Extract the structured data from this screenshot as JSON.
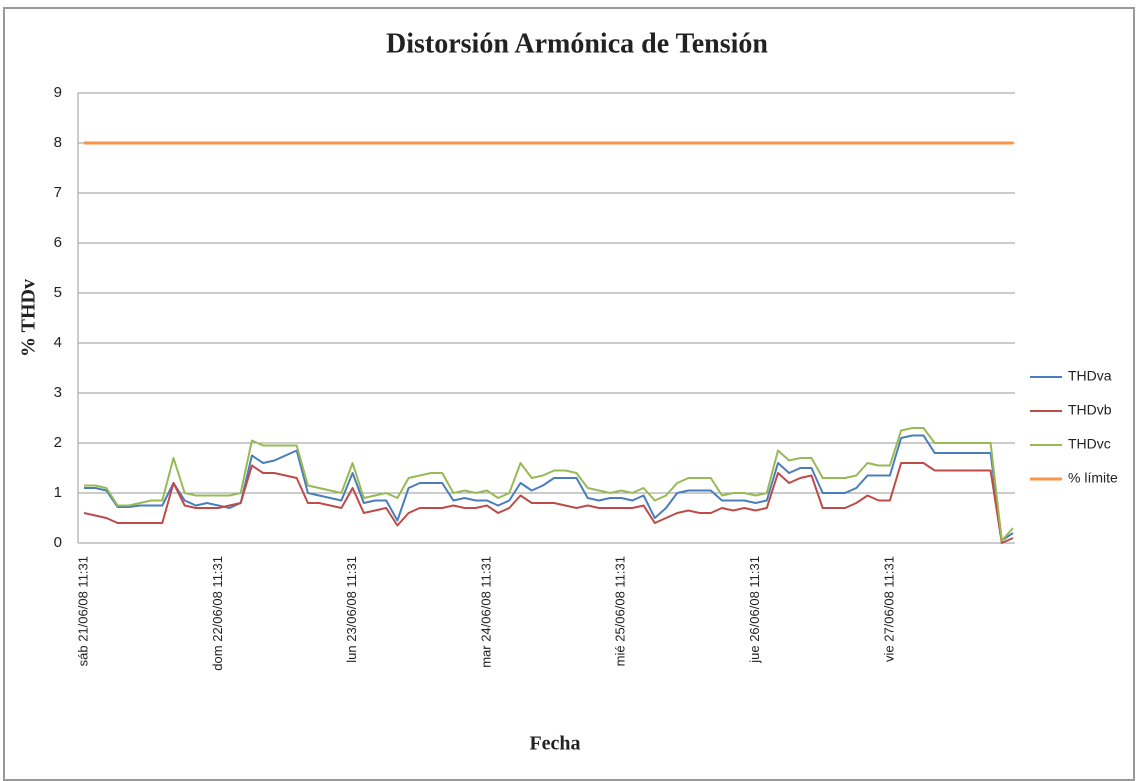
{
  "chart_data": {
    "type": "line",
    "title": "Distorsión Armónica de Tensión",
    "x_label": "Fecha",
    "y_label": "% THDv",
    "categories": [
      "sáb 21/06/08 11:31",
      null,
      null,
      null,
      null,
      null,
      null,
      null,
      null,
      null,
      null,
      null,
      "dom 22/06/08 11:31",
      null,
      null,
      null,
      null,
      null,
      null,
      null,
      null,
      null,
      null,
      null,
      "lun 23/06/08 11:31",
      null,
      null,
      null,
      null,
      null,
      null,
      null,
      null,
      null,
      null,
      null,
      "mar 24/06/08 11:31",
      null,
      null,
      null,
      null,
      null,
      null,
      null,
      null,
      null,
      null,
      null,
      "mié 25/06/08 11:31",
      null,
      null,
      null,
      null,
      null,
      null,
      null,
      null,
      null,
      null,
      null,
      "jue 26/06/08 11:31",
      null,
      null,
      null,
      null,
      null,
      null,
      null,
      null,
      null,
      null,
      null,
      "vie 27/06/08 11:31",
      null,
      null,
      null,
      null,
      null,
      null,
      null,
      null,
      null,
      null,
      null
    ],
    "series": [
      {
        "name": "THDva",
        "color": "#4a7ebb",
        "values": [
          1.1,
          1.1,
          1.05,
          0.72,
          0.72,
          0.75,
          0.75,
          0.75,
          1.2,
          0.85,
          0.75,
          0.8,
          0.75,
          0.7,
          0.8,
          1.75,
          1.6,
          1.65,
          1.75,
          1.85,
          1.0,
          0.95,
          0.9,
          0.85,
          1.4,
          0.8,
          0.85,
          0.85,
          0.45,
          1.1,
          1.2,
          1.2,
          1.2,
          0.85,
          0.9,
          0.85,
          0.85,
          0.75,
          0.85,
          1.2,
          1.05,
          1.15,
          1.3,
          1.3,
          1.3,
          0.9,
          0.85,
          0.9,
          0.9,
          0.85,
          0.95,
          0.5,
          0.7,
          1.0,
          1.05,
          1.05,
          1.05,
          0.85,
          0.85,
          0.85,
          0.8,
          0.85,
          1.6,
          1.4,
          1.5,
          1.5,
          1.0,
          1.0,
          1.0,
          1.1,
          1.35,
          1.35,
          1.35,
          2.1,
          2.15,
          2.15,
          1.8,
          1.8,
          1.8,
          1.8,
          1.8,
          1.8,
          0.05,
          0.2
        ]
      },
      {
        "name": "THDvb",
        "color": "#be4b48",
        "values": [
          0.6,
          0.55,
          0.5,
          0.4,
          0.4,
          0.4,
          0.4,
          0.4,
          1.2,
          0.75,
          0.7,
          0.7,
          0.7,
          0.75,
          0.8,
          1.55,
          1.4,
          1.4,
          1.35,
          1.3,
          0.8,
          0.8,
          0.75,
          0.7,
          1.1,
          0.6,
          0.65,
          0.7,
          0.35,
          0.6,
          0.7,
          0.7,
          0.7,
          0.75,
          0.7,
          0.7,
          0.75,
          0.6,
          0.7,
          0.95,
          0.8,
          0.8,
          0.8,
          0.75,
          0.7,
          0.75,
          0.7,
          0.7,
          0.7,
          0.7,
          0.75,
          0.4,
          0.5,
          0.6,
          0.65,
          0.6,
          0.6,
          0.7,
          0.65,
          0.7,
          0.65,
          0.7,
          1.4,
          1.2,
          1.3,
          1.35,
          0.7,
          0.7,
          0.7,
          0.8,
          0.95,
          0.85,
          0.85,
          1.6,
          1.6,
          1.6,
          1.45,
          1.45,
          1.45,
          1.45,
          1.45,
          1.45,
          0.0,
          0.1
        ]
      },
      {
        "name": "THDvc",
        "color": "#98b954",
        "values": [
          1.15,
          1.15,
          1.1,
          0.75,
          0.75,
          0.8,
          0.85,
          0.85,
          1.7,
          1.0,
          0.95,
          0.95,
          0.95,
          0.95,
          1.0,
          2.05,
          1.95,
          1.95,
          1.95,
          1.95,
          1.15,
          1.1,
          1.05,
          1.0,
          1.6,
          0.9,
          0.95,
          1.0,
          0.9,
          1.3,
          1.35,
          1.4,
          1.4,
          1.0,
          1.05,
          1.0,
          1.05,
          0.9,
          1.0,
          1.6,
          1.3,
          1.35,
          1.45,
          1.45,
          1.4,
          1.1,
          1.05,
          1.0,
          1.05,
          1.0,
          1.1,
          0.85,
          0.95,
          1.2,
          1.3,
          1.3,
          1.3,
          0.95,
          1.0,
          1.0,
          0.95,
          1.0,
          1.85,
          1.65,
          1.7,
          1.7,
          1.3,
          1.3,
          1.3,
          1.35,
          1.6,
          1.55,
          1.55,
          2.25,
          2.3,
          2.3,
          2.0,
          2.0,
          2.0,
          2.0,
          2.0,
          2.0,
          0.05,
          0.3
        ]
      },
      {
        "name": "% límite",
        "color": "#f79646",
        "values": [
          8,
          8,
          8,
          8,
          8,
          8,
          8,
          8,
          8,
          8,
          8,
          8,
          8,
          8,
          8,
          8,
          8,
          8,
          8,
          8,
          8,
          8,
          8,
          8,
          8,
          8,
          8,
          8,
          8,
          8,
          8,
          8,
          8,
          8,
          8,
          8,
          8,
          8,
          8,
          8,
          8,
          8,
          8,
          8,
          8,
          8,
          8,
          8,
          8,
          8,
          8,
          8,
          8,
          8,
          8,
          8,
          8,
          8,
          8,
          8,
          8,
          8,
          8,
          8,
          8,
          8,
          8,
          8,
          8,
          8,
          8,
          8,
          8,
          8,
          8,
          8,
          8,
          8,
          8,
          8,
          8,
          8,
          8,
          8
        ]
      }
    ],
    "ylim": [
      0,
      9
    ],
    "yticks": [
      0,
      1,
      2,
      3,
      4,
      5,
      6,
      7,
      8,
      9
    ],
    "grid": true,
    "legend": "right"
  }
}
